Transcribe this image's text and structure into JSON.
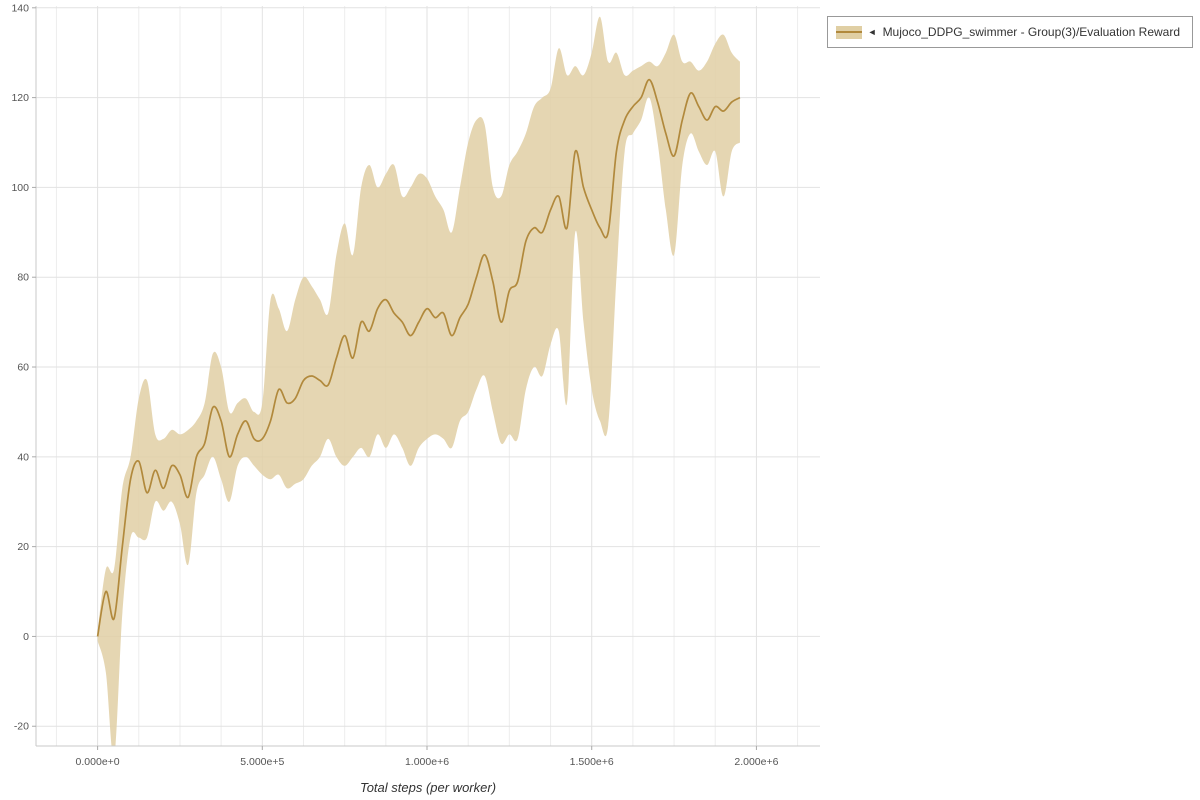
{
  "legend": {
    "toggle_glyph": "◄",
    "label": "Mujoco_DDPG_swimmer - Group(3)/Evaluation Reward"
  },
  "axes": {
    "x_label": "Total steps (per worker)",
    "x_ticks": [
      {
        "value": 0,
        "label": "0.000e+0"
      },
      {
        "value": 500000,
        "label": "5.000e+5"
      },
      {
        "value": 1000000,
        "label": "1.000e+6"
      },
      {
        "value": 1500000,
        "label": "1.500e+6"
      },
      {
        "value": 2000000,
        "label": "2.000e+6"
      }
    ],
    "y_ticks": [
      {
        "value": -20,
        "label": "-20"
      },
      {
        "value": 0,
        "label": "0"
      },
      {
        "value": 20,
        "label": "20"
      },
      {
        "value": 40,
        "label": "40"
      },
      {
        "value": 60,
        "label": "60"
      },
      {
        "value": 80,
        "label": "80"
      },
      {
        "value": 100,
        "label": "100"
      },
      {
        "value": 120,
        "label": "120"
      },
      {
        "value": 140,
        "label": "140"
      }
    ]
  },
  "colors": {
    "line": "#b1893c",
    "band": "#e0cfa4",
    "grid_minor": "#ededed",
    "grid_major": "#e2e2e2",
    "spine": "#c8c8c8",
    "tick_mark": "#aaaaaa",
    "tick_text": "#555555"
  },
  "chart_data": {
    "type": "line",
    "title": "",
    "xlabel": "Total steps (per worker)",
    "ylabel": "",
    "legend_position": "top-right",
    "grid": true,
    "xlim": [
      -187000,
      2193000
    ],
    "ylim": [
      -24.4,
      140.4
    ],
    "x_grid_minor_step": 125000,
    "x": [
      0,
      25000,
      50000,
      75000,
      100000,
      125000,
      150000,
      175000,
      200000,
      225000,
      250000,
      275000,
      300000,
      325000,
      350000,
      375000,
      400000,
      425000,
      450000,
      475000,
      500000,
      525000,
      550000,
      575000,
      600000,
      625000,
      650000,
      675000,
      700000,
      725000,
      750000,
      775000,
      800000,
      825000,
      850000,
      875000,
      900000,
      925000,
      950000,
      975000,
      1000000,
      1025000,
      1050000,
      1075000,
      1100000,
      1125000,
      1150000,
      1175000,
      1200000,
      1225000,
      1250000,
      1275000,
      1300000,
      1325000,
      1350000,
      1375000,
      1400000,
      1425000,
      1450000,
      1475000,
      1500000,
      1525000,
      1550000,
      1575000,
      1600000,
      1625000,
      1650000,
      1675000,
      1700000,
      1725000,
      1750000,
      1775000,
      1800000,
      1825000,
      1850000,
      1875000,
      1900000,
      1925000,
      1950000
    ],
    "series": [
      {
        "name": "Mujoco_DDPG_swimmer - Group(3)/Evaluation Reward",
        "mean": [
          0,
          10,
          4,
          20,
          35,
          39,
          32,
          37,
          33,
          38,
          36,
          31,
          40,
          43,
          51,
          48,
          40,
          45,
          48,
          44,
          44,
          48,
          55,
          52,
          53,
          57,
          58,
          57,
          56,
          62,
          67,
          62,
          70,
          68,
          73,
          75,
          72,
          70,
          67,
          70,
          73,
          71,
          72,
          67,
          71,
          74,
          80,
          85,
          79,
          70,
          77,
          79,
          88,
          91,
          90,
          95,
          98,
          91,
          108,
          100,
          95,
          91,
          90,
          108,
          115,
          118,
          120,
          124,
          119,
          112,
          107,
          115,
          121,
          118,
          115,
          118,
          117,
          119,
          120
        ],
        "lower": [
          -1,
          -8,
          -27,
          5,
          22,
          22,
          22,
          30,
          28,
          30,
          25,
          16,
          32,
          36,
          40,
          35,
          30,
          38,
          40,
          38,
          36,
          35,
          36,
          33,
          34,
          35,
          38,
          40,
          44,
          40,
          38,
          40,
          42,
          40,
          45,
          42,
          45,
          42,
          38,
          42,
          44,
          45,
          44,
          42,
          48,
          50,
          55,
          58,
          50,
          43,
          45,
          44,
          55,
          60,
          58,
          65,
          68,
          52,
          90,
          70,
          55,
          48,
          47,
          80,
          108,
          112,
          115,
          120,
          110,
          95,
          85,
          105,
          112,
          108,
          105,
          108,
          98,
          108,
          110
        ],
        "upper": [
          1,
          15,
          15,
          33,
          40,
          53,
          57,
          45,
          44,
          46,
          45,
          46,
          48,
          52,
          63,
          60,
          50,
          52,
          53,
          50,
          52,
          75,
          73,
          68,
          75,
          80,
          78,
          75,
          72,
          85,
          92,
          85,
          100,
          105,
          100,
          103,
          105,
          98,
          100,
          103,
          102,
          98,
          95,
          90,
          100,
          110,
          115,
          114,
          100,
          98,
          105,
          108,
          112,
          118,
          120,
          122,
          131,
          125,
          127,
          125,
          130,
          138,
          128,
          130,
          125,
          126,
          127,
          128,
          127,
          130,
          134,
          128,
          128,
          126,
          128,
          132,
          134,
          130,
          128
        ]
      }
    ]
  }
}
